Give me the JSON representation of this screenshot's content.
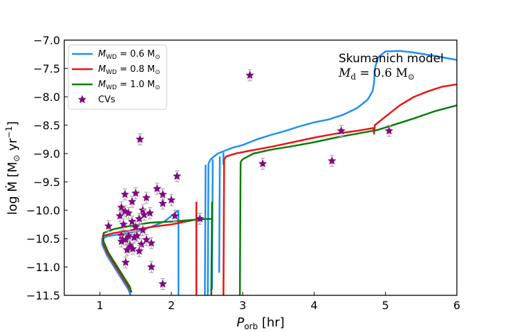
{
  "chart_data": {
    "type": "line",
    "xlabel": "P",
    "xlabel_sub": "orb",
    "xlabel_unit": " [hr]",
    "ylabel": "log Ṁ [M",
    "ylabel_sub": "⊙",
    "ylabel_unit": " yr",
    "ylabel_sup": "−1",
    "ylabel_close": "]",
    "xlim": [
      0.5,
      6.0
    ],
    "ylim": [
      -11.5,
      -7.0
    ],
    "xticks": [
      1,
      2,
      3,
      4,
      5,
      6
    ],
    "xtick_labels": [
      "1",
      "2",
      "3",
      "4",
      "5",
      "6"
    ],
    "yticks": [
      -11.5,
      -11.0,
      -10.5,
      -10.0,
      -9.5,
      -9.0,
      -8.5,
      -8.0,
      -7.5,
      -7.0
    ],
    "ytick_labels": [
      "−11.5",
      "−11.0",
      "−10.5",
      "−10.0",
      "−9.5",
      "−9.0",
      "−8.5",
      "−8.0",
      "−7.5",
      "−7.0"
    ],
    "annotation": {
      "line1": "Skumanich model",
      "line2_math": "M",
      "line2_sub": "d",
      "line2_rest": " = 0.6 M",
      "line2_sun": "⊙"
    },
    "legend_position": "upper-left",
    "series": [
      {
        "name": "M",
        "name_sub": "WD",
        "name_rest": " = 0.6 M",
        "name_sun": "⊙",
        "color": "#1f8ff0",
        "segments": [
          [
            [
              6.0,
              -7.35
            ],
            [
              5.7,
              -7.28
            ],
            [
              5.4,
              -7.22
            ],
            [
              5.2,
              -7.19
            ],
            [
              5.0,
              -7.2
            ],
            [
              4.9,
              -7.3
            ],
            [
              4.85,
              -7.5
            ],
            [
              4.84,
              -7.75
            ],
            [
              4.82,
              -7.9
            ],
            [
              4.75,
              -8.05
            ],
            [
              4.6,
              -8.2
            ],
            [
              4.4,
              -8.32
            ],
            [
              4.2,
              -8.4
            ],
            [
              4.0,
              -8.45
            ],
            [
              3.8,
              -8.52
            ],
            [
              3.6,
              -8.6
            ],
            [
              3.4,
              -8.67
            ],
            [
              3.2,
              -8.75
            ],
            [
              3.0,
              -8.85
            ],
            [
              2.85,
              -8.9
            ],
            [
              2.75,
              -8.95
            ],
            [
              2.65,
              -9.0
            ],
            [
              2.55,
              -9.1
            ],
            [
              2.52,
              -9.18
            ]
          ],
          [
            [
              2.52,
              -9.18
            ],
            [
              2.51,
              -11.5
            ]
          ],
          [
            [
              2.48,
              -9.2
            ],
            [
              2.47,
              -11.5
            ]
          ],
          [
            [
              2.58,
              -9.1
            ],
            [
              2.57,
              -11.4
            ]
          ],
          [
            [
              2.68,
              -9.05
            ],
            [
              2.67,
              -11.1
            ]
          ],
          [
            [
              2.73,
              -8.98
            ],
            [
              2.73,
              -9.2
            ]
          ],
          [
            [
              2.1,
              -10.0
            ],
            [
              2.1,
              -11.5
            ]
          ],
          [
            [
              2.1,
              -10.0
            ],
            [
              1.9,
              -10.2
            ],
            [
              1.7,
              -10.3
            ],
            [
              1.5,
              -10.38
            ],
            [
              1.3,
              -10.42
            ],
            [
              1.1,
              -10.46
            ],
            [
              1.03,
              -10.5
            ],
            [
              1.03,
              -10.6
            ],
            [
              1.1,
              -10.8
            ],
            [
              1.2,
              -11.0
            ],
            [
              1.3,
              -11.2
            ],
            [
              1.4,
              -11.4
            ],
            [
              1.43,
              -11.5
            ]
          ]
        ]
      },
      {
        "name": "M",
        "name_sub": "WD",
        "name_rest": " = 0.8 M",
        "name_sun": "⊙",
        "color": "#ee1111",
        "segments": [
          [
            [
              6.0,
              -7.78
            ],
            [
              5.8,
              -7.82
            ],
            [
              5.6,
              -7.9
            ],
            [
              5.4,
              -8.0
            ],
            [
              5.2,
              -8.15
            ],
            [
              5.0,
              -8.35
            ],
            [
              4.85,
              -8.5
            ],
            [
              4.84,
              -8.65
            ],
            [
              4.83,
              -8.55
            ],
            [
              4.6,
              -8.6
            ],
            [
              4.3,
              -8.65
            ],
            [
              4.0,
              -8.72
            ],
            [
              3.7,
              -8.8
            ],
            [
              3.4,
              -8.88
            ],
            [
              3.1,
              -8.95
            ],
            [
              2.9,
              -9.0
            ],
            [
              2.77,
              -9.05
            ],
            [
              2.74,
              -9.1
            ]
          ],
          [
            [
              2.74,
              -9.1
            ],
            [
              2.73,
              -11.5
            ]
          ],
          [
            [
              2.35,
              -9.85
            ],
            [
              2.35,
              -11.5
            ]
          ],
          [
            [
              2.4,
              -10.15
            ],
            [
              2.2,
              -10.2
            ],
            [
              2.0,
              -10.25
            ],
            [
              1.8,
              -10.28
            ],
            [
              1.6,
              -10.32
            ],
            [
              1.4,
              -10.36
            ],
            [
              1.2,
              -10.4
            ],
            [
              1.04,
              -10.45
            ],
            [
              1.05,
              -10.6
            ],
            [
              1.1,
              -10.75
            ],
            [
              1.2,
              -10.95
            ],
            [
              1.3,
              -11.15
            ],
            [
              1.4,
              -11.35
            ],
            [
              1.44,
              -11.45
            ]
          ]
        ]
      },
      {
        "name": "M",
        "name_sub": "WD",
        "name_rest": " = 1.0 M",
        "name_sun": "⊙",
        "color": "#0a7a0a",
        "segments": [
          [
            [
              6.0,
              -8.15
            ],
            [
              5.7,
              -8.25
            ],
            [
              5.4,
              -8.38
            ],
            [
              5.1,
              -8.5
            ],
            [
              4.9,
              -8.58
            ],
            [
              4.6,
              -8.65
            ],
            [
              4.3,
              -8.72
            ],
            [
              4.0,
              -8.8
            ],
            [
              3.7,
              -8.87
            ],
            [
              3.4,
              -8.93
            ],
            [
              3.15,
              -9.0
            ],
            [
              3.0,
              -9.1
            ],
            [
              2.97,
              -9.15
            ]
          ],
          [
            [
              2.97,
              -9.15
            ],
            [
              2.96,
              -11.5
            ]
          ],
          [
            [
              2.57,
              -9.85
            ],
            [
              2.56,
              -11.5
            ]
          ],
          [
            [
              2.57,
              -10.15
            ],
            [
              2.3,
              -10.17
            ],
            [
              2.0,
              -10.2
            ],
            [
              1.7,
              -10.22
            ],
            [
              1.4,
              -10.28
            ],
            [
              1.2,
              -10.33
            ],
            [
              1.05,
              -10.4
            ],
            [
              1.05,
              -10.55
            ],
            [
              1.12,
              -10.75
            ],
            [
              1.22,
              -10.95
            ],
            [
              1.32,
              -11.15
            ],
            [
              1.42,
              -11.35
            ],
            [
              1.44,
              -11.45
            ]
          ]
        ]
      },
      {
        "name": "CVs",
        "type": "scatter",
        "color": "#800a80",
        "points": [
          [
            3.1,
            -7.62
          ],
          [
            1.56,
            -8.75
          ],
          [
            4.38,
            -8.6
          ],
          [
            5.05,
            -8.6
          ],
          [
            4.25,
            -9.13
          ],
          [
            3.28,
            -9.18
          ],
          [
            2.08,
            -9.4
          ],
          [
            2.4,
            -10.15
          ],
          [
            2.05,
            -10.1
          ],
          [
            1.12,
            -10.28
          ],
          [
            1.8,
            -9.62
          ],
          [
            1.88,
            -9.72
          ],
          [
            2.0,
            -9.82
          ],
          [
            1.65,
            -9.78
          ],
          [
            1.5,
            -9.7
          ],
          [
            1.35,
            -9.72
          ],
          [
            1.3,
            -9.95
          ],
          [
            1.45,
            -9.85
          ],
          [
            1.88,
            -9.88
          ],
          [
            1.6,
            -10.0
          ],
          [
            1.35,
            -10.02
          ],
          [
            1.4,
            -10.05
          ],
          [
            1.28,
            -10.1
          ],
          [
            1.62,
            -10.08
          ],
          [
            1.7,
            -10.05
          ],
          [
            1.55,
            -10.15
          ],
          [
            1.45,
            -10.2
          ],
          [
            1.33,
            -10.25
          ],
          [
            1.5,
            -10.3
          ],
          [
            1.6,
            -10.35
          ],
          [
            1.3,
            -10.45
          ],
          [
            1.4,
            -10.45
          ],
          [
            1.48,
            -10.48
          ],
          [
            1.36,
            -10.52
          ],
          [
            1.58,
            -10.6
          ],
          [
            1.65,
            -10.52
          ],
          [
            1.72,
            -10.58
          ],
          [
            1.42,
            -10.62
          ],
          [
            1.38,
            -10.7
          ],
          [
            1.46,
            -10.68
          ],
          [
            1.55,
            -10.72
          ],
          [
            1.36,
            -10.92
          ],
          [
            1.72,
            -11.0
          ],
          [
            1.88,
            -11.3
          ],
          [
            1.3,
            -10.55
          ],
          [
            1.52,
            -10.45
          ]
        ]
      }
    ]
  }
}
